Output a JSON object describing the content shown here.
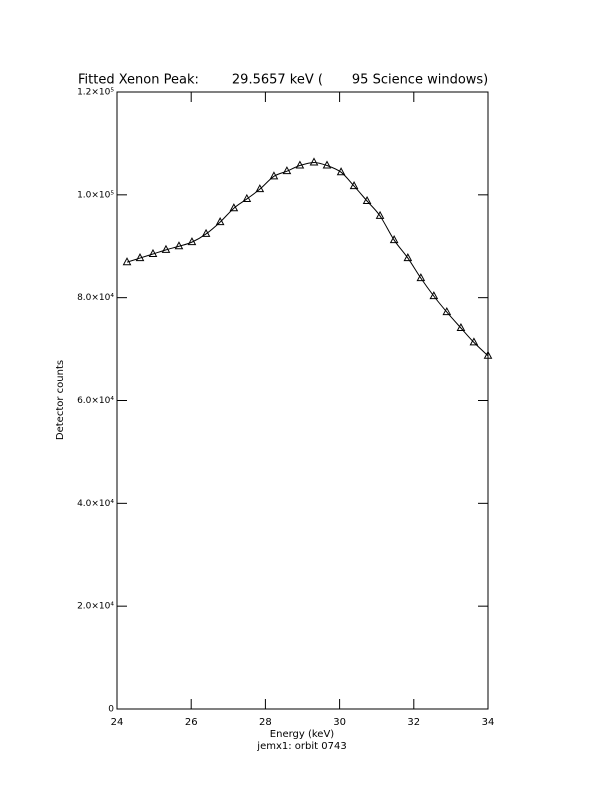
{
  "chart_data": {
    "type": "line",
    "title": "Fitted Xenon Peak:        29.5657 keV (       95 Science windows)",
    "xlabel": "Energy (keV)",
    "subtitle": "jemx1: orbit 0743",
    "ylabel": "Detector counts",
    "x": [
      24.27,
      24.62,
      24.97,
      25.32,
      25.67,
      26.02,
      26.4,
      26.78,
      27.15,
      27.5,
      27.85,
      28.23,
      28.58,
      28.93,
      29.31,
      29.66,
      30.04,
      30.39,
      30.74,
      31.09,
      31.47,
      31.84,
      32.19,
      32.54,
      32.89,
      33.27,
      33.62,
      34.0
    ],
    "series": [
      {
        "color": "#000000",
        "marker": "triangle",
        "values": [
          86900,
          87700,
          88500,
          89300,
          90000,
          90800,
          92400,
          94700,
          97400,
          99200,
          101100,
          103600,
          104600,
          105700,
          106300,
          105700,
          104400,
          101700,
          98800,
          95900,
          91200,
          87700,
          83800,
          80300,
          77200,
          74100,
          71300,
          68700
        ]
      }
    ],
    "xlim": [
      24,
      34
    ],
    "xticks": [
      24,
      26,
      28,
      30,
      32,
      34
    ],
    "ylim": [
      0,
      120000
    ],
    "yticks": [
      0,
      {
        "value": 20000,
        "label": "2.0×10⁴"
      },
      {
        "value": 40000,
        "label": "4.0×10⁴"
      },
      {
        "value": 60000,
        "label": "6.0×10⁴"
      },
      {
        "value": 80000,
        "label": "8.0×10⁴"
      },
      {
        "value": 100000,
        "label": "1.0×10⁵"
      },
      {
        "value": 120000,
        "label": "1.2×10⁵"
      }
    ]
  }
}
